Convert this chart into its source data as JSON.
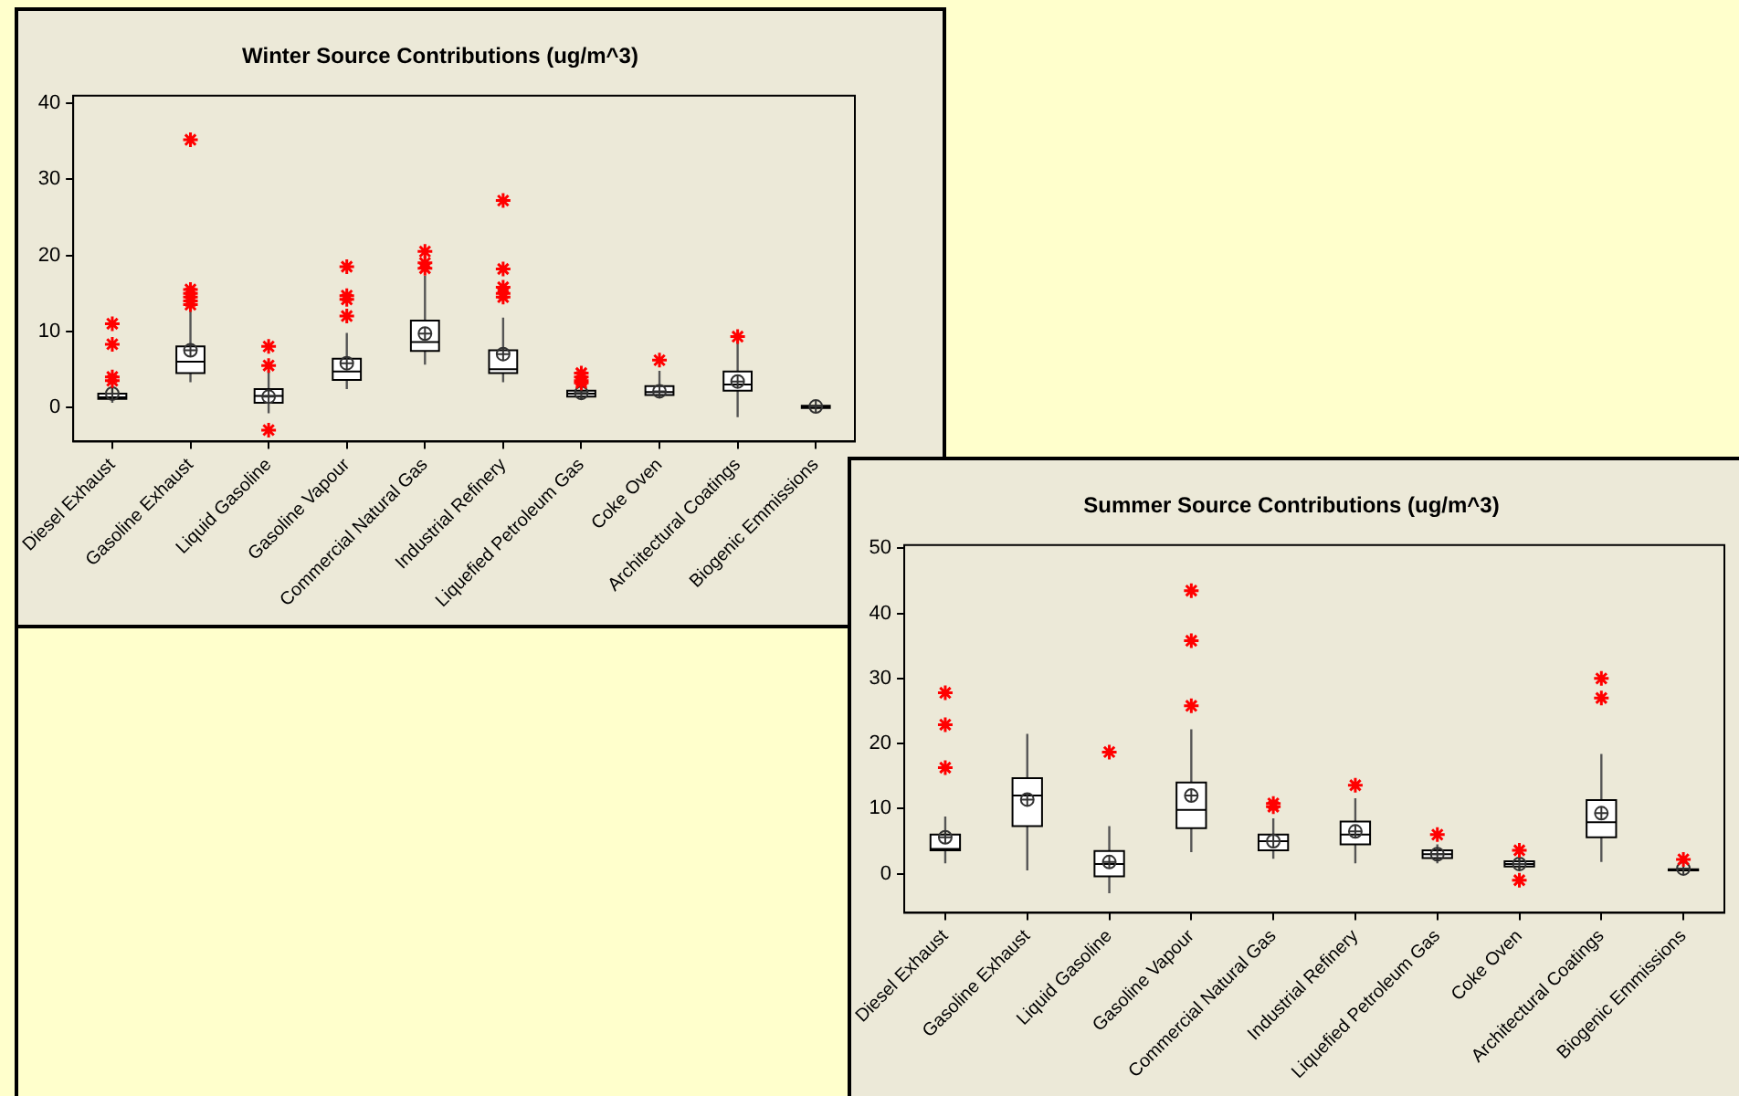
{
  "chart_data": [
    {
      "type": "box",
      "title": "Winter Source Contributions (ug/m^3)",
      "categories": [
        "Diesel Exhaust",
        "Gasoline Exhaust",
        "Liquid Gasoline",
        "Gasoline Vapour",
        "Commercial Natural Gas",
        "Industrial Refinery",
        "Liquefied Petroleum Gas",
        "Coke Oven",
        "Architectural Coatings",
        "Biogenic Emmissions"
      ],
      "ylim": [
        -4.5,
        41
      ],
      "yticks": [
        0,
        10,
        20,
        30,
        40
      ],
      "grid": false,
      "legend": false,
      "boxes": [
        {
          "low": 0.6,
          "q1": 1.1,
          "median": 1.3,
          "q3": 1.8,
          "high": 3,
          "mean": 1.8,
          "outliers": [
            11,
            8.3,
            4,
            3.5
          ]
        },
        {
          "low": 3.3,
          "q1": 4.5,
          "median": 6,
          "q3": 8,
          "high": 13,
          "mean": 7.5,
          "outliers": [
            35.2,
            15.5,
            15,
            14.5,
            14,
            13.5
          ]
        },
        {
          "low": -0.8,
          "q1": 0.6,
          "median": 1.5,
          "q3": 2.4,
          "high": 5,
          "mean": 1.4,
          "outliers": [
            8,
            5.5,
            -3
          ]
        },
        {
          "low": 2.4,
          "q1": 3.6,
          "median": 4.7,
          "q3": 6.4,
          "high": 9.8,
          "mean": 5.8,
          "outliers": [
            18.5,
            14.7,
            14.2,
            12
          ]
        },
        {
          "low": 5.6,
          "q1": 7.4,
          "median": 8.6,
          "q3": 11.4,
          "high": 17.3,
          "mean": 9.7,
          "outliers": [
            20.5,
            19,
            18.3
          ]
        },
        {
          "low": 3.3,
          "q1": 4.5,
          "median": 5,
          "q3": 7.5,
          "high": 11.8,
          "mean": 7,
          "outliers": [
            27.2,
            18.2,
            15.8,
            15,
            14.5
          ]
        },
        {
          "low": 1,
          "q1": 1.4,
          "median": 1.8,
          "q3": 2.2,
          "high": 2.8,
          "mean": 1.9,
          "outliers": [
            4.5,
            4,
            3.5,
            3.2
          ]
        },
        {
          "low": 1.2,
          "q1": 1.6,
          "median": 2,
          "q3": 2.8,
          "high": 4.8,
          "mean": 2.1,
          "outliers": [
            6.2
          ]
        },
        {
          "low": -1.3,
          "q1": 2.2,
          "median": 3,
          "q3": 4.7,
          "high": 8.8,
          "mean": 3.4,
          "outliers": [
            9.3
          ]
        },
        {
          "low": -0.2,
          "q1": -0.1,
          "median": 0.05,
          "q3": 0.2,
          "high": 0.3,
          "mean": 0.1
        }
      ]
    },
    {
      "type": "box",
      "title": "Summer Source Contributions (ug/m^3)",
      "categories": [
        "Diesel Exhaust",
        "Gasoline Exhaust",
        "Liquid Gasoline",
        "Gasoline Vapour",
        "Commercial Natural Gas",
        "Industrial Refinery",
        "Liquefied Petroleum Gas",
        "Coke Oven",
        "Architectural Coatings",
        "Biogenic Emmissions"
      ],
      "ylim": [
        -6,
        50.5
      ],
      "yticks": [
        0,
        10,
        20,
        30,
        40,
        50
      ],
      "grid": false,
      "legend": false,
      "boxes": [
        {
          "low": 1.6,
          "q1": 3.6,
          "median": 3.8,
          "q3": 6,
          "high": 8.8,
          "mean": 5.6,
          "outliers": [
            27.8,
            22.9,
            16.3
          ]
        },
        {
          "low": 0.5,
          "q1": 7.3,
          "median": 12,
          "q3": 14.7,
          "high": 21.5,
          "mean": 11.4
        },
        {
          "low": -3,
          "q1": -0.4,
          "median": 1.5,
          "q3": 3.5,
          "high": 7.3,
          "mean": 1.8,
          "outliers": [
            18.7
          ]
        },
        {
          "low": 3.3,
          "q1": 7,
          "median": 9.8,
          "q3": 14,
          "high": 22.2,
          "mean": 12,
          "outliers": [
            43.5,
            35.8,
            25.8
          ]
        },
        {
          "low": 2.3,
          "q1": 3.6,
          "median": 5,
          "q3": 6,
          "high": 8.5,
          "mean": 5,
          "outliers": [
            10.8,
            10.3
          ]
        },
        {
          "low": 1.6,
          "q1": 4.5,
          "median": 6,
          "q3": 8,
          "high": 11.6,
          "mean": 6.5,
          "outliers": [
            13.6
          ]
        },
        {
          "low": 1.6,
          "q1": 2.4,
          "median": 3,
          "q3": 3.6,
          "high": 4.5,
          "mean": 3,
          "outliers": [
            6
          ]
        },
        {
          "low": 0.5,
          "q1": 1.1,
          "median": 1.5,
          "q3": 1.9,
          "high": 2.8,
          "mean": 1.5,
          "outliers": [
            3.6,
            -1
          ]
        },
        {
          "low": 1.8,
          "q1": 5.6,
          "median": 7.9,
          "q3": 11.3,
          "high": 18.4,
          "mean": 9.3,
          "outliers": [
            30,
            27
          ]
        },
        {
          "low": 0.4,
          "q1": 0.5,
          "median": 0.6,
          "q3": 0.7,
          "high": 0.9,
          "mean": 0.8,
          "outliers": [
            2.2
          ]
        }
      ]
    }
  ]
}
